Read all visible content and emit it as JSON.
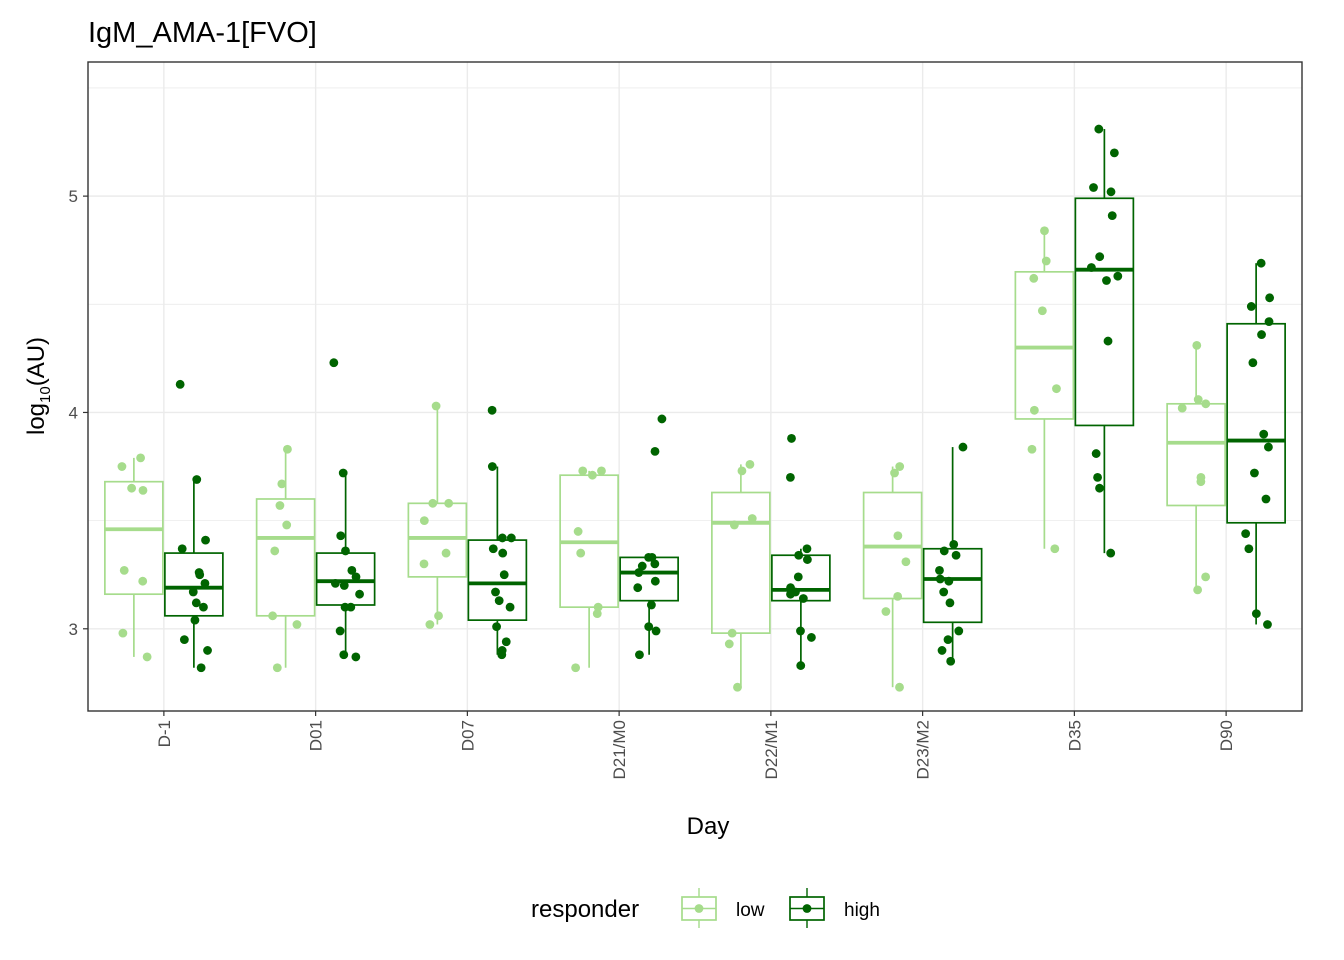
{
  "chart_data": {
    "type": "box",
    "title": "IgM_AMA-1[FVO]",
    "xlabel": "Day",
    "ylabel": "log10(AU)",
    "ylabel_base": "log",
    "ylabel_sub": "10",
    "ylabel_rest": "(AU)",
    "ylim": [
      2.62,
      5.62
    ],
    "yticks": [
      3,
      4,
      5
    ],
    "grid": true,
    "categories": [
      "D-1",
      "D01",
      "D07",
      "D21/M0",
      "D22/M1",
      "D23/M2",
      "D35",
      "D90"
    ],
    "legend": {
      "title": "responder",
      "position": "bottom",
      "entries": [
        {
          "name": "low",
          "color": "#a6dc8c"
        },
        {
          "name": "high",
          "color": "#006400"
        }
      ]
    },
    "series": [
      {
        "name": "low",
        "color": "#a6dc8c",
        "boxes": [
          {
            "q1": 3.16,
            "median": 3.46,
            "q3": 3.68,
            "whisker_low": 2.87,
            "whisker_high": 3.79
          },
          {
            "q1": 3.06,
            "median": 3.42,
            "q3": 3.6,
            "whisker_low": 2.82,
            "whisker_high": 3.83
          },
          {
            "q1": 3.24,
            "median": 3.42,
            "q3": 3.58,
            "whisker_low": 3.02,
            "whisker_high": 4.03
          },
          {
            "q1": 3.1,
            "median": 3.4,
            "q3": 3.71,
            "whisker_low": 2.82,
            "whisker_high": 3.73
          },
          {
            "q1": 2.98,
            "median": 3.49,
            "q3": 3.63,
            "whisker_low": 2.73,
            "whisker_high": 3.76
          },
          {
            "q1": 3.14,
            "median": 3.38,
            "q3": 3.63,
            "whisker_low": 2.73,
            "whisker_high": 3.75
          },
          {
            "q1": 3.97,
            "median": 4.3,
            "q3": 4.65,
            "whisker_low": 3.37,
            "whisker_high": 4.84
          },
          {
            "q1": 3.57,
            "median": 3.86,
            "q3": 4.04,
            "whisker_low": 3.18,
            "whisker_high": 4.31
          }
        ],
        "points": [
          [
            3.79,
            3.75,
            3.65,
            3.64,
            3.27,
            3.22,
            2.98,
            2.87
          ],
          [
            3.83,
            3.67,
            3.57,
            3.48,
            3.36,
            3.06,
            3.02,
            2.82
          ],
          [
            4.03,
            3.58,
            3.58,
            3.5,
            3.35,
            3.3,
            3.06,
            3.02
          ],
          [
            3.73,
            3.73,
            3.71,
            3.45,
            3.35,
            3.1,
            3.07,
            2.82
          ],
          [
            3.76,
            3.73,
            3.51,
            3.48,
            2.98,
            2.93,
            2.73
          ],
          [
            3.75,
            3.72,
            3.43,
            3.31,
            3.15,
            3.08,
            2.73
          ],
          [
            4.84,
            4.7,
            4.62,
            4.47,
            4.11,
            4.01,
            3.83,
            3.37
          ],
          [
            4.31,
            4.06,
            4.04,
            4.02,
            3.7,
            3.68,
            3.24,
            3.18
          ]
        ]
      },
      {
        "name": "high",
        "color": "#006400",
        "boxes": [
          {
            "q1": 3.06,
            "median": 3.19,
            "q3": 3.35,
            "whisker_low": 2.82,
            "whisker_high": 3.69
          },
          {
            "q1": 3.11,
            "median": 3.22,
            "q3": 3.35,
            "whisker_low": 2.87,
            "whisker_high": 3.72
          },
          {
            "q1": 3.04,
            "median": 3.21,
            "q3": 3.41,
            "whisker_low": 2.88,
            "whisker_high": 3.75
          },
          {
            "q1": 3.13,
            "median": 3.26,
            "q3": 3.33,
            "whisker_low": 2.88,
            "whisker_high": 3.33
          },
          {
            "q1": 3.13,
            "median": 3.18,
            "q3": 3.34,
            "whisker_low": 2.82,
            "whisker_high": 3.37
          },
          {
            "q1": 3.03,
            "median": 3.23,
            "q3": 3.37,
            "whisker_low": 2.84,
            "whisker_high": 3.84
          },
          {
            "q1": 3.94,
            "median": 4.66,
            "q3": 4.99,
            "whisker_low": 3.35,
            "whisker_high": 5.31
          },
          {
            "q1": 3.49,
            "median": 3.87,
            "q3": 4.41,
            "whisker_low": 3.02,
            "whisker_high": 4.69
          }
        ],
        "points": [
          [
            4.13,
            3.69,
            3.41,
            3.37,
            3.26,
            3.25,
            3.21,
            3.17,
            3.12,
            3.1,
            3.04,
            2.95,
            2.9,
            2.82
          ],
          [
            4.23,
            3.72,
            3.43,
            3.36,
            3.27,
            3.24,
            3.21,
            3.2,
            3.16,
            3.1,
            3.1,
            2.99,
            2.88,
            2.87
          ],
          [
            4.01,
            3.75,
            3.42,
            3.42,
            3.37,
            3.35,
            3.25,
            3.17,
            3.13,
            3.1,
            3.01,
            2.94,
            2.9,
            2.88
          ],
          [
            3.97,
            3.82,
            3.33,
            3.33,
            3.3,
            3.29,
            3.26,
            3.22,
            3.19,
            3.11,
            3.01,
            2.99,
            2.88
          ],
          [
            3.88,
            3.7,
            3.37,
            3.34,
            3.32,
            3.24,
            3.19,
            3.17,
            3.16,
            3.14,
            2.99,
            2.96,
            2.83
          ],
          [
            3.84,
            3.39,
            3.36,
            3.34,
            3.27,
            3.23,
            3.22,
            3.17,
            3.12,
            2.99,
            2.95,
            2.9,
            2.85
          ],
          [
            5.31,
            5.2,
            5.04,
            5.02,
            4.91,
            4.72,
            4.67,
            4.63,
            4.61,
            4.33,
            3.81,
            3.7,
            3.65,
            3.35
          ],
          [
            4.69,
            4.53,
            4.49,
            4.42,
            4.36,
            4.23,
            3.9,
            3.84,
            3.72,
            3.6,
            3.44,
            3.37,
            3.07,
            3.02
          ]
        ]
      }
    ]
  }
}
